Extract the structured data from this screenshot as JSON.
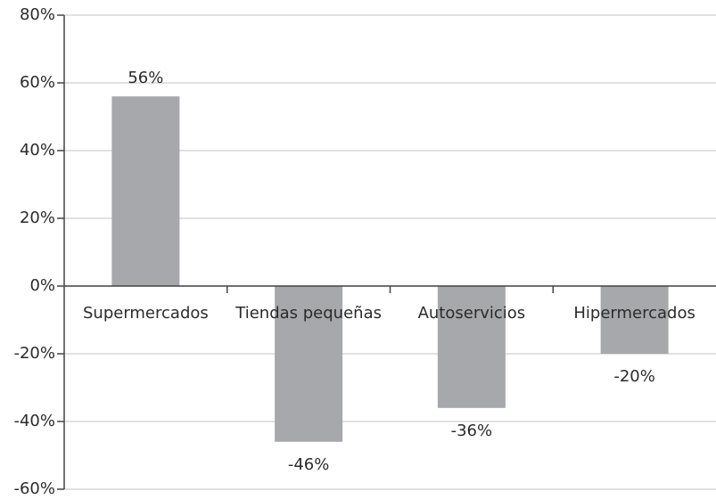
{
  "chart_data": {
    "type": "bar",
    "categories": [
      "Supermercados",
      "Tiendas pequeñas",
      "Autoservicios",
      "Hipermercados"
    ],
    "values": [
      56,
      -46,
      -36,
      -20
    ],
    "value_labels": [
      "56%",
      "-46%",
      "-36%",
      "-20%"
    ],
    "color": "#a7a8ab",
    "ylim": [
      -60,
      80
    ],
    "yticks": [
      {
        "value": -60,
        "label": "-60%"
      },
      {
        "value": -40,
        "label": "-40%"
      },
      {
        "value": -20,
        "label": "-20%"
      },
      {
        "value": 0,
        "label": "0%"
      },
      {
        "value": 20,
        "label": "20%"
      },
      {
        "value": 40,
        "label": "40%"
      },
      {
        "value": 60,
        "label": "60%"
      },
      {
        "value": 80,
        "label": "80%"
      }
    ],
    "grid": true
  }
}
